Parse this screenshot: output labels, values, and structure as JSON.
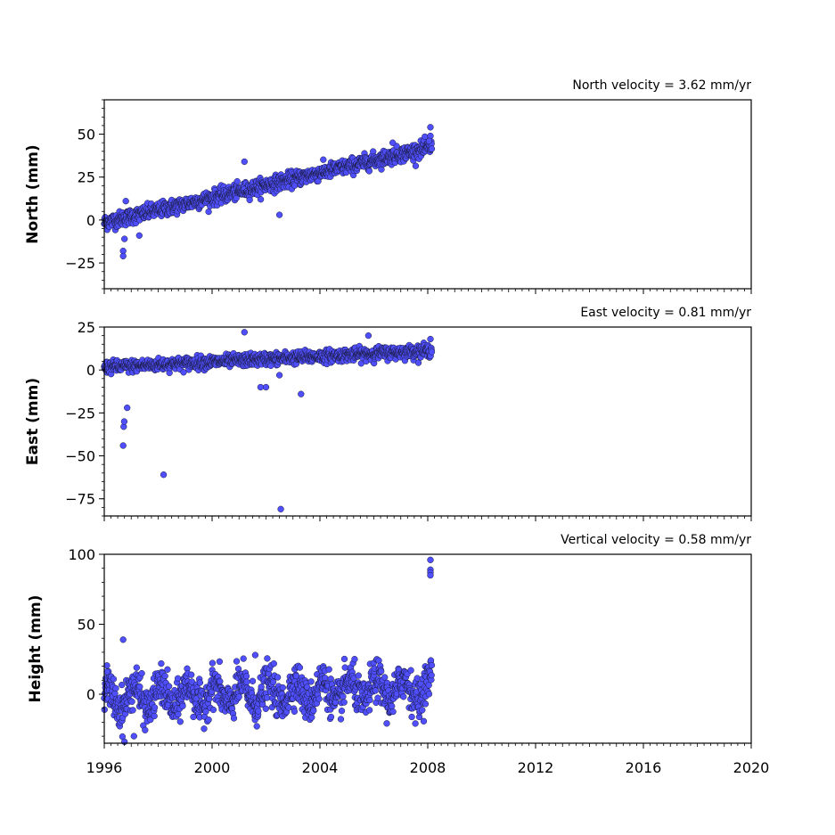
{
  "chart_data": [
    {
      "type": "scatter",
      "annotation": "North velocity = 3.62 mm/yr",
      "ylabel": "North (mm)",
      "xlim": [
        1996,
        2020
      ],
      "ylim": [
        -40,
        70
      ],
      "yticks": [
        50,
        25,
        0,
        -25
      ],
      "ytick_labels": [
        "50",
        "25",
        "0",
        "−25"
      ],
      "x_start": 1996.0,
      "x_end": 2008.15,
      "trend": {
        "y0": -1.5,
        "rate": 3.62
      },
      "noise": 2.2,
      "outliers": [
        {
          "x": 1996.7,
          "y": -18
        },
        {
          "x": 1996.7,
          "y": -21
        },
        {
          "x": 1996.75,
          "y": -11
        },
        {
          "x": 1996.8,
          "y": 11
        },
        {
          "x": 1997.3,
          "y": -9
        },
        {
          "x": 2001.2,
          "y": 34
        },
        {
          "x": 2002.5,
          "y": 3
        },
        {
          "x": 2006.7,
          "y": 45
        },
        {
          "x": 2008.1,
          "y": 54
        },
        {
          "x": 2008.1,
          "y": 49
        },
        {
          "x": 2008.05,
          "y": 46
        }
      ]
    },
    {
      "type": "scatter",
      "annotation": "East velocity = 0.81 mm/yr",
      "ylabel": "East (mm)",
      "xlim": [
        1996,
        2020
      ],
      "ylim": [
        -85,
        25
      ],
      "yticks": [
        25,
        0,
        -25,
        -50,
        -75
      ],
      "ytick_labels": [
        "25",
        "0",
        "−25",
        "−50",
        "−75"
      ],
      "x_start": 1996.0,
      "x_end": 2008.15,
      "trend": {
        "y0": 1.5,
        "rate": 0.81
      },
      "noise": 1.8,
      "outliers": [
        {
          "x": 1996.7,
          "y": -44
        },
        {
          "x": 1996.72,
          "y": -33
        },
        {
          "x": 1996.74,
          "y": -30
        },
        {
          "x": 1996.85,
          "y": -22
        },
        {
          "x": 1998.2,
          "y": -61
        },
        {
          "x": 2001.2,
          "y": 22
        },
        {
          "x": 2001.8,
          "y": -10
        },
        {
          "x": 2002.0,
          "y": -10
        },
        {
          "x": 2002.5,
          "y": -3
        },
        {
          "x": 2002.55,
          "y": -81
        },
        {
          "x": 2003.3,
          "y": -14
        },
        {
          "x": 2005.8,
          "y": 20
        },
        {
          "x": 2008.1,
          "y": 18
        }
      ]
    },
    {
      "type": "scatter",
      "annotation": "Vertical velocity = 0.58 mm/yr",
      "ylabel": "Height (mm)",
      "xlim": [
        1996,
        2020
      ],
      "ylim": [
        -35,
        100
      ],
      "yticks": [
        100,
        50,
        0
      ],
      "ytick_labels": [
        "100",
        "50",
        "0"
      ],
      "x_start": 1996.0,
      "x_end": 2008.15,
      "trend": {
        "y0": -3,
        "rate": 0.58
      },
      "noise": 7,
      "seasonal": 8,
      "outliers": [
        {
          "x": 1996.7,
          "y": 39
        },
        {
          "x": 1996.75,
          "y": -34
        },
        {
          "x": 1997.1,
          "y": -30
        },
        {
          "x": 1997.2,
          "y": 19
        },
        {
          "x": 1996.1,
          "y": 16
        },
        {
          "x": 2001.6,
          "y": 28
        },
        {
          "x": 2008.1,
          "y": 96
        },
        {
          "x": 2008.1,
          "y": 89
        },
        {
          "x": 2008.1,
          "y": 87
        },
        {
          "x": 2008.1,
          "y": 85
        }
      ]
    }
  ],
  "xticks": [
    1996,
    2000,
    2004,
    2008,
    2012,
    2016,
    2020
  ],
  "xtick_labels": [
    "1996",
    "2000",
    "2004",
    "2008",
    "2012",
    "2016",
    "2020"
  ],
  "colors": {
    "marker_fill": "#4f4fff",
    "marker_edge": "#1a1a3a",
    "axis": "#000000"
  }
}
